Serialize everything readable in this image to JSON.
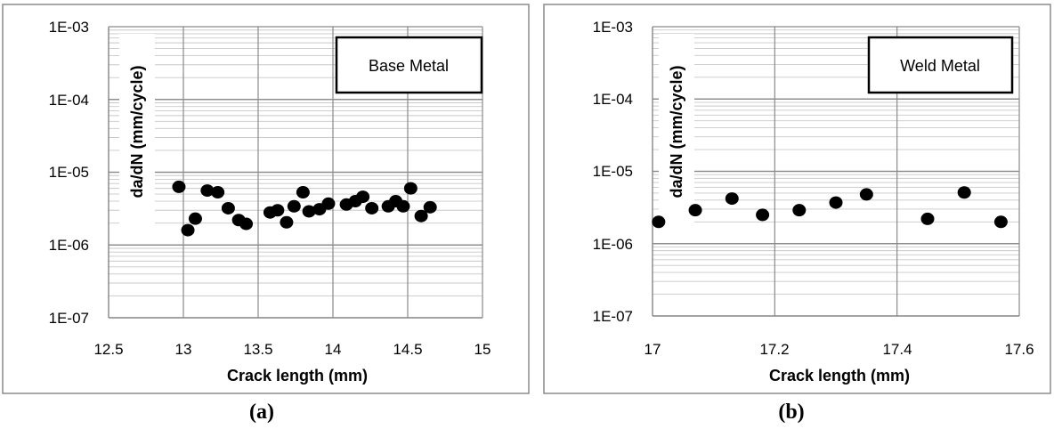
{
  "chart_data": [
    {
      "type": "scatter",
      "caption": "(a)",
      "title": "",
      "label_box": "Base Metal",
      "xlabel": "Crack length (mm)",
      "ylabel": "da/dN (mm/cycle)",
      "xlim": [
        12.5,
        15
      ],
      "x_ticks": [
        12.5,
        13,
        13.5,
        14,
        14.5,
        15
      ],
      "x_tick_labels": [
        "12.5",
        "13",
        "13.5",
        "14",
        "14.5",
        "15"
      ],
      "ylim": [
        1e-07,
        0.001
      ],
      "y_scale": "log",
      "y_ticks": [
        1e-07,
        1e-06,
        1e-05,
        0.0001,
        0.001
      ],
      "y_tick_labels": [
        "1E-07",
        "1E-06",
        "1E-05",
        "1E-04",
        "1E-03"
      ],
      "grid": true,
      "marker_color": "#000000",
      "points": [
        [
          12.97,
          6.3e-06
        ],
        [
          13.03,
          1.6e-06
        ],
        [
          13.08,
          2.3e-06
        ],
        [
          13.16,
          5.6e-06
        ],
        [
          13.23,
          5.3e-06
        ],
        [
          13.3,
          3.2e-06
        ],
        [
          13.37,
          2.2e-06
        ],
        [
          13.42,
          1.95e-06
        ],
        [
          13.58,
          2.8e-06
        ],
        [
          13.63,
          3e-06
        ],
        [
          13.69,
          2.05e-06
        ],
        [
          13.74,
          3.4e-06
        ],
        [
          13.8,
          5.3e-06
        ],
        [
          13.84,
          2.9e-06
        ],
        [
          13.91,
          3.1e-06
        ],
        [
          13.97,
          3.7e-06
        ],
        [
          14.09,
          3.6e-06
        ],
        [
          14.15,
          4e-06
        ],
        [
          14.2,
          4.6e-06
        ],
        [
          14.26,
          3.2e-06
        ],
        [
          14.37,
          3.4e-06
        ],
        [
          14.42,
          4e-06
        ],
        [
          14.47,
          3.4e-06
        ],
        [
          14.52,
          6e-06
        ],
        [
          14.59,
          2.5e-06
        ],
        [
          14.65,
          3.3e-06
        ]
      ]
    },
    {
      "type": "scatter",
      "caption": "(b)",
      "title": "",
      "label_box": "Weld Metal",
      "xlabel": "Crack length (mm)",
      "ylabel": "da/dN (mm/cycle)",
      "xlim": [
        17,
        17.6
      ],
      "x_ticks": [
        17,
        17.2,
        17.4,
        17.6
      ],
      "x_tick_labels": [
        "17",
        "17.2",
        "17.4",
        "17.6"
      ],
      "ylim": [
        1e-07,
        0.001
      ],
      "y_scale": "log",
      "y_ticks": [
        1e-07,
        1e-06,
        1e-05,
        0.0001,
        0.001
      ],
      "y_tick_labels": [
        "1E-07",
        "1E-06",
        "1E-05",
        "1E-04",
        "1E-03"
      ],
      "grid": true,
      "marker_color": "#000000",
      "points": [
        [
          17.01,
          2e-06
        ],
        [
          17.07,
          2.9e-06
        ],
        [
          17.13,
          4.2e-06
        ],
        [
          17.18,
          2.5e-06
        ],
        [
          17.24,
          2.9e-06
        ],
        [
          17.3,
          3.7e-06
        ],
        [
          17.35,
          4.8e-06
        ],
        [
          17.45,
          2.2e-06
        ],
        [
          17.51,
          5.1e-06
        ],
        [
          17.57,
          2e-06
        ]
      ]
    }
  ]
}
